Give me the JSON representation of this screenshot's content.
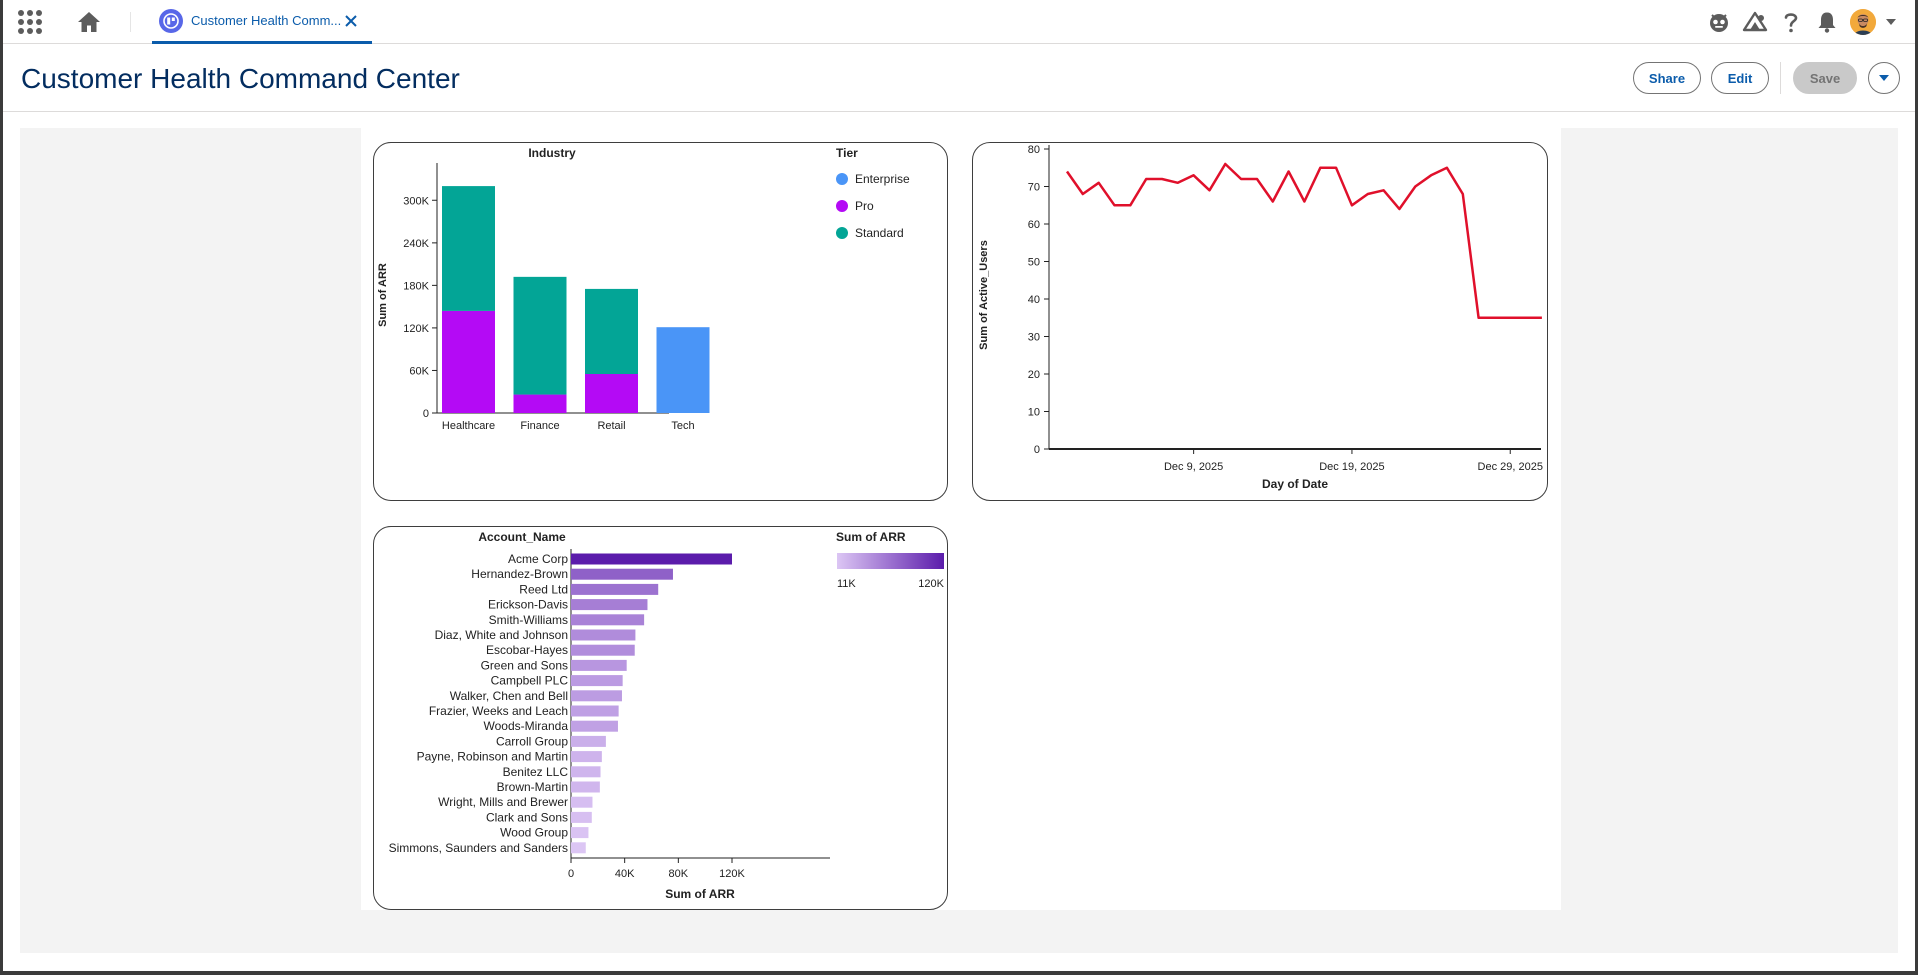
{
  "tab": {
    "label": "Customer Health Comm..."
  },
  "header": {
    "title": "Customer Health Command Center",
    "share_label": "Share",
    "edit_label": "Edit",
    "save_label": "Save"
  },
  "icons": {
    "app_launcher": "waffle-icon",
    "home": "home-icon",
    "tab_icon": "dashboard-icon",
    "close": "close-icon",
    "agent": "agent-icon",
    "setup_assistant": "trailhead-icon",
    "help": "help-icon",
    "notifications": "bell-icon",
    "dropdown": "chevron-down-icon"
  },
  "colors": {
    "brand": "#0b5cab",
    "enterprise": "#4a95f7",
    "pro": "#b40af5",
    "standard": "#03a596",
    "line": "#e0102b",
    "bar_dark": "#5b1cab",
    "bar_light": "#dcc6f4"
  },
  "chart_data": [
    {
      "type": "bar",
      "stacked": true,
      "title": "Industry",
      "xlabel": "",
      "ylabel": "Sum of ARR",
      "categories": [
        "Healthcare",
        "Finance",
        "Retail",
        "Tech"
      ],
      "series": [
        {
          "name": "Enterprise",
          "color": "#4a95f7",
          "values": [
            0,
            0,
            0,
            121000
          ]
        },
        {
          "name": "Pro",
          "color": "#b40af5",
          "values": [
            144000,
            26000,
            55000,
            0
          ]
        },
        {
          "name": "Standard",
          "color": "#03a596",
          "values": [
            176000,
            166000,
            120000,
            0
          ]
        }
      ],
      "ylim": [
        0,
        330000
      ],
      "yticks": [
        0,
        60000,
        120000,
        180000,
        240000,
        300000
      ],
      "ytick_labels": [
        "0",
        "60K",
        "120K",
        "180K",
        "240K",
        "300K"
      ],
      "legend_title": "Tier",
      "legend_position": "top-right",
      "grid": false
    },
    {
      "type": "line",
      "xlabel": "Day of Date",
      "ylabel": "Sum of Active_Users",
      "x": [
        "2025-12-01",
        "2025-12-02",
        "2025-12-03",
        "2025-12-04",
        "2025-12-05",
        "2025-12-06",
        "2025-12-07",
        "2025-12-08",
        "2025-12-09",
        "2025-12-10",
        "2025-12-11",
        "2025-12-12",
        "2025-12-13",
        "2025-12-14",
        "2025-12-15",
        "2025-12-16",
        "2025-12-17",
        "2025-12-18",
        "2025-12-19",
        "2025-12-20",
        "2025-12-21",
        "2025-12-22",
        "2025-12-23",
        "2025-12-24",
        "2025-12-25",
        "2025-12-26",
        "2025-12-27",
        "2025-12-28",
        "2025-12-29",
        "2025-12-30",
        "2025-12-31"
      ],
      "values": [
        74,
        68,
        71,
        65,
        65,
        72,
        72,
        71,
        73,
        69,
        76,
        72,
        72,
        66,
        74,
        66,
        75,
        75,
        65,
        68,
        69,
        64,
        70,
        73,
        75,
        68,
        35,
        35,
        35,
        35,
        35
      ],
      "ylim": [
        0,
        80
      ],
      "yticks": [
        0,
        10,
        20,
        30,
        40,
        50,
        60,
        70,
        80
      ],
      "xtick_labels": [
        "Dec 9, 2025",
        "Dec 19, 2025",
        "Dec 29, 2025"
      ],
      "grid": false
    },
    {
      "type": "bar",
      "orientation": "horizontal",
      "title": "Account_Name",
      "xlabel": "Sum of ARR",
      "categories": [
        "Acme Corp",
        "Hernandez-Brown",
        "Reed Ltd",
        "Erickson-Davis",
        "Smith-Williams",
        "Diaz, White and Johnson",
        "Escobar-Hayes",
        "Green and Sons",
        "Campbell PLC",
        "Walker, Chen and Bell",
        "Frazier, Weeks and Leach",
        "Woods-Miranda",
        "Carroll Group",
        "Payne, Robinson and Martin",
        "Benitez LLC",
        "Brown-Martin",
        "Wright, Mills and Brewer",
        "Clark and Sons",
        "Wood Group",
        "Simmons, Saunders and Sanders"
      ],
      "values": [
        120000,
        76000,
        65000,
        57000,
        54500,
        48000,
        47500,
        41500,
        38500,
        38000,
        35500,
        35000,
        26000,
        23000,
        22000,
        21500,
        16000,
        15500,
        13000,
        11000
      ],
      "xlim": [
        0,
        130000
      ],
      "xticks": [
        0,
        40000,
        80000,
        120000
      ],
      "xtick_labels": [
        "0",
        "40K",
        "80K",
        "120K"
      ],
      "color_legend_title": "Sum of ARR",
      "color_legend_min_label": "11K",
      "color_legend_max_label": "120K",
      "grid": false
    }
  ]
}
